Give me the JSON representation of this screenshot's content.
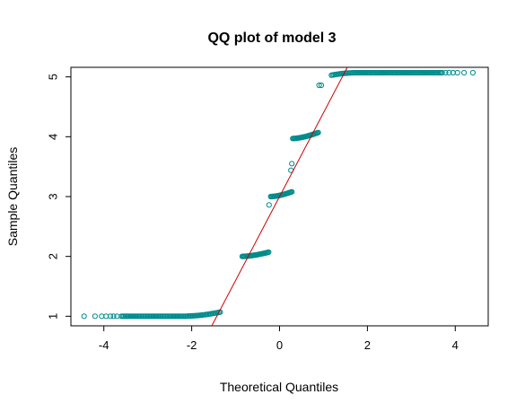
{
  "chart_data": {
    "type": "scatter",
    "title": "QQ plot of model 3",
    "xlabel": "Theoretical Quantiles",
    "ylabel": "Sample Quantiles",
    "xlim": [
      -4.75,
      4.75
    ],
    "ylim": [
      0.84,
      5.16
    ],
    "x_ticks": [
      -4,
      -2,
      0,
      2,
      4
    ],
    "y_ticks": [
      1,
      2,
      3,
      4,
      5
    ],
    "grid": false,
    "legend": "none",
    "point_color": "#008B8B",
    "line_color": "#CC0000",
    "reference_line": {
      "slope": 1.4,
      "intercept": 3.0
    },
    "groups": [
      {
        "level": 1,
        "x_start": -4.45,
        "x_end": -1.35,
        "y_start": 1.0,
        "y_end": 1.07
      },
      {
        "level": 2,
        "x_start": -0.85,
        "x_end": -0.25,
        "y_start": 2.0,
        "y_end": 2.07
      },
      {
        "level": 3,
        "x_start": -0.2,
        "x_end": 0.28,
        "y_start": 3.0,
        "y_end": 3.08
      },
      {
        "level": 4,
        "x_start": 0.3,
        "x_end": 0.88,
        "y_start": 3.97,
        "y_end": 4.07
      },
      {
        "level": 5,
        "x_start": 1.18,
        "x_end": 4.4,
        "y_start": 5.0,
        "y_end": 5.07
      }
    ],
    "outliers": [
      {
        "x": -0.24,
        "y": 2.86
      },
      {
        "x": 0.26,
        "y": 3.44
      },
      {
        "x": 0.28,
        "y": 3.55
      },
      {
        "x": 0.9,
        "y": 4.86
      },
      {
        "x": 0.95,
        "y": 4.86
      }
    ]
  }
}
